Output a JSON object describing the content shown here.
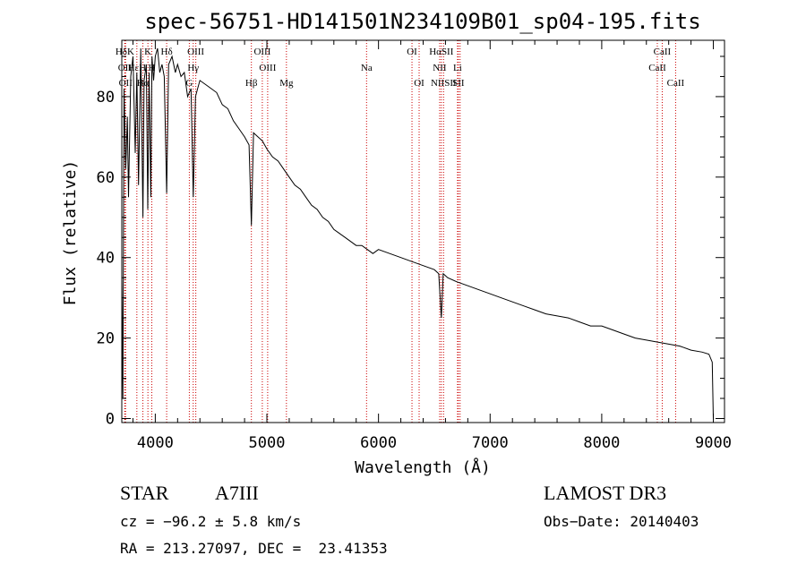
{
  "chart_data": {
    "type": "line",
    "title": "spec-56751-HD141501N234109B01_sp04-195.fits",
    "xlabel": "Wavelength (Å)",
    "ylabel": "Flux (relative)",
    "xlim": [
      3700,
      9100
    ],
    "ylim": [
      -1,
      94
    ],
    "xticks": [
      4000,
      5000,
      6000,
      7000,
      8000,
      9000
    ],
    "xticklabels": [
      "4000",
      "5000",
      "6000",
      "7000",
      "8000",
      "9000"
    ],
    "yticks": [
      0,
      20,
      40,
      60,
      80
    ],
    "yticklabels": [
      "0",
      "20",
      "40",
      "60",
      "80"
    ],
    "series": [
      {
        "name": "spectrum",
        "x": [
          3700,
          3710,
          3720,
          3735,
          3750,
          3760,
          3780,
          3800,
          3820,
          3835,
          3850,
          3870,
          3889,
          3900,
          3920,
          3933,
          3945,
          3960,
          3970,
          3985,
          4000,
          4020,
          4040,
          4060,
          4080,
          4102,
          4120,
          4150,
          4180,
          4200,
          4230,
          4260,
          4290,
          4320,
          4340,
          4360,
          4380,
          4400,
          4450,
          4500,
          4550,
          4600,
          4650,
          4700,
          4750,
          4800,
          4840,
          4861,
          4880,
          4920,
          4960,
          5000,
          5050,
          5100,
          5150,
          5200,
          5250,
          5300,
          5350,
          5400,
          5450,
          5500,
          5550,
          5600,
          5650,
          5700,
          5750,
          5800,
          5850,
          5900,
          5950,
          6000,
          6100,
          6200,
          6300,
          6400,
          6500,
          6540,
          6563,
          6580,
          6620,
          6700,
          6800,
          6900,
          7000,
          7100,
          7200,
          7300,
          7400,
          7500,
          7600,
          7700,
          7800,
          7900,
          8000,
          8100,
          8200,
          8300,
          8400,
          8500,
          8600,
          8700,
          8800,
          8900,
          8960,
          8990,
          9000
        ],
        "y": [
          35,
          5,
          82,
          62,
          75,
          55,
          85,
          90,
          66,
          86,
          58,
          92,
          50,
          84,
          88,
          52,
          86,
          55,
          90,
          84,
          90,
          92,
          86,
          88,
          85,
          56,
          88,
          90,
          86,
          88,
          85,
          86,
          80,
          82,
          55,
          80,
          82,
          84,
          83,
          82,
          81,
          78,
          77,
          74,
          72,
          70,
          68,
          48,
          71,
          70,
          69,
          67,
          65,
          64,
          62,
          60,
          58,
          57,
          55,
          53,
          52,
          50,
          49,
          47,
          46,
          45,
          44,
          43,
          43,
          42,
          41,
          42,
          41,
          40,
          39,
          38,
          37,
          36,
          25,
          36,
          35,
          34,
          33,
          32,
          31,
          30,
          29,
          28,
          27,
          26,
          25.5,
          25,
          24,
          23,
          23,
          22,
          21,
          20,
          19.5,
          19,
          18.5,
          18,
          17,
          16.5,
          16,
          14,
          0
        ]
      }
    ],
    "lines": [
      {
        "label": "HδK",
        "x": 3727,
        "row": 0
      },
      {
        "label": "OII",
        "x": 3727,
        "row": 1
      },
      {
        "label": "OII",
        "x": 3734,
        "row": 2
      },
      {
        "label": "HεH",
        "x": 3835,
        "row": 1
      },
      {
        "label": "Hα",
        "x": 3889,
        "row": 2
      },
      {
        "label": "K",
        "x": 3934,
        "row": 0
      },
      {
        "label": "H",
        "x": 3969,
        "row": 1
      },
      {
        "label": "Hδ",
        "x": 4102,
        "row": 0
      },
      {
        "label": "G",
        "x": 4305,
        "row": 2
      },
      {
        "label": "OIII",
        "x": 4363,
        "row": 0
      },
      {
        "label": "Hγ",
        "x": 4340,
        "row": 1
      },
      {
        "label": "Hβ",
        "x": 4861,
        "row": 2
      },
      {
        "label": "OIII",
        "x": 4959,
        "row": 0
      },
      {
        "label": "OIII",
        "x": 5007,
        "row": 1
      },
      {
        "label": "Mg",
        "x": 5175,
        "row": 2
      },
      {
        "label": "Na",
        "x": 5893,
        "row": 1
      },
      {
        "label": "OI",
        "x": 6300,
        "row": 0
      },
      {
        "label": "OI",
        "x": 6364,
        "row": 2
      },
      {
        "label": "HαSII",
        "x": 6563,
        "row": 0
      },
      {
        "label": "NII",
        "x": 6548,
        "row": 1
      },
      {
        "label": "NIISII",
        "x": 6583,
        "row": 2
      },
      {
        "label": "Li",
        "x": 6708,
        "row": 1
      },
      {
        "label": "SII",
        "x": 6716,
        "row": 2
      },
      {
        "label": "",
        "x": 6731,
        "row": 3
      },
      {
        "label": "CaII",
        "x": 8542,
        "row": 0
      },
      {
        "label": "CaII",
        "x": 8498,
        "row": 1
      },
      {
        "label": "CaII",
        "x": 8662,
        "row": 2
      }
    ]
  },
  "info": {
    "object_type": "STAR",
    "spectral_class": "A7III",
    "survey": "LAMOST DR3",
    "cz": "cz = −96.2 ± 5.8 km/s",
    "obs_date": "Obs−Date: 20140403",
    "coords": "RA = 213.27097, DEC =  23.41353"
  },
  "colors": {
    "spectrum": "#000000",
    "line_markers": "#cc0000",
    "axes": "#000000"
  }
}
